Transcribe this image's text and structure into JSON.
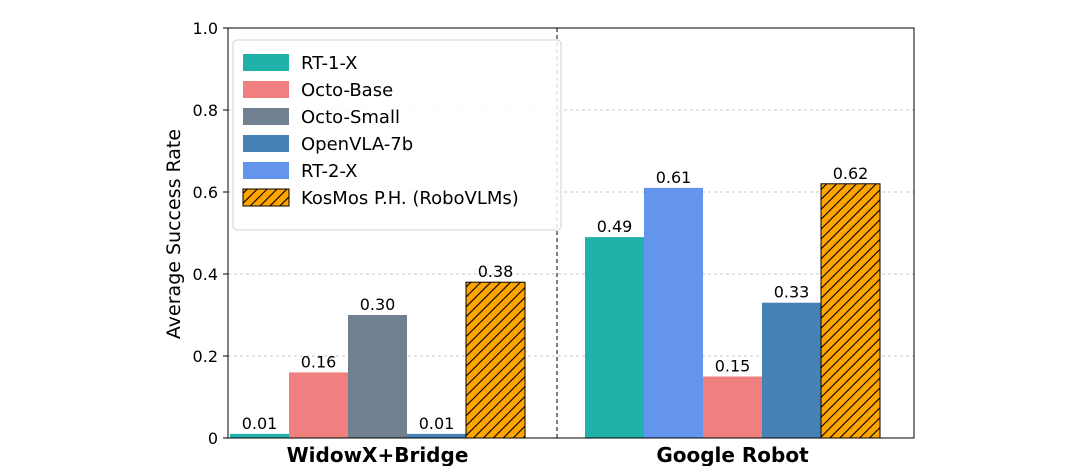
{
  "chart_data": {
    "type": "bar",
    "ylabel": "Average Success Rate",
    "ylim": [
      0,
      1.0
    ],
    "yticks": [
      "0",
      "0.2",
      "0.4",
      "0.6",
      "0.8",
      "1.0"
    ],
    "grid": "horizontal dashed",
    "legend_position": "top-left",
    "groups": [
      {
        "name": "WidowX+Bridge",
        "bars": [
          {
            "series": "RT-1-X",
            "value": 0.01,
            "label": "0.01"
          },
          {
            "series": "Octo-Base",
            "value": 0.16,
            "label": "0.16"
          },
          {
            "series": "Octo-Small",
            "value": 0.3,
            "label": "0.30"
          },
          {
            "series": "OpenVLA-7b",
            "value": 0.01,
            "label": "0.01"
          },
          {
            "series": "KosMos P.H. (RoboVLMs)",
            "value": 0.38,
            "label": "0.38"
          }
        ]
      },
      {
        "name": "Google Robot",
        "bars": [
          {
            "series": "RT-1-X",
            "value": 0.49,
            "label": "0.49"
          },
          {
            "series": "RT-2-X",
            "value": 0.61,
            "label": "0.61"
          },
          {
            "series": "Octo-Base",
            "value": 0.15,
            "label": "0.15"
          },
          {
            "series": "OpenVLA-7b",
            "value": 0.33,
            "label": "0.33"
          },
          {
            "series": "KosMos P.H. (RoboVLMs)",
            "value": 0.62,
            "label": "0.62"
          }
        ]
      }
    ],
    "series": [
      {
        "name": "RT-1-X",
        "color": "#20b2aa",
        "hatched": false
      },
      {
        "name": "Octo-Base",
        "color": "#f08080",
        "hatched": false
      },
      {
        "name": "Octo-Small",
        "color": "#708090",
        "hatched": false
      },
      {
        "name": "OpenVLA-7b",
        "color": "#4682b4",
        "hatched": false
      },
      {
        "name": "RT-2-X",
        "color": "#6495ed",
        "hatched": false
      },
      {
        "name": "KosMos P.H. (RoboVLMs)",
        "color": "#ffa500",
        "hatched": true
      }
    ]
  }
}
